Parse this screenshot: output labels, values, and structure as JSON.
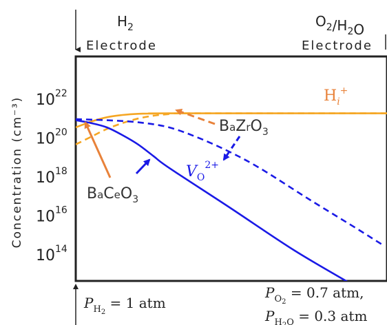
{
  "chart_data": {
    "type": "line",
    "xlabel": "",
    "ylabel": "Concentration (cm⁻³)",
    "y_scale": "log",
    "y_tick_values": [
      100000000000000.0,
      1e+16,
      1e+18,
      1e+20,
      1e+22
    ],
    "y_tick_labels": [
      {
        "base": "10",
        "exp": "14"
      },
      {
        "base": "10",
        "exp": "16"
      },
      {
        "base": "10",
        "exp": "18"
      },
      {
        "base": "10",
        "exp": "20"
      },
      {
        "base": "10",
        "exp": "22"
      }
    ],
    "x_range": [
      0,
      1
    ],
    "grid": false,
    "top_labels": {
      "left": {
        "species": "H₂",
        "word": "Electrode"
      },
      "right": {
        "species": "O₂/H₂O",
        "word": "Electrode"
      }
    },
    "bottom_labels": {
      "left": "P_H2 = 1 atm",
      "right_line1": "P_O2 = 0.7 atm,",
      "right_line2": "P_H2O = 0.3 atm"
    },
    "series": [
      {
        "name": "H_i^+ (BaCeO3)",
        "color": "#f5a623",
        "style": "solid",
        "x": [
          0,
          0.05,
          0.1,
          0.15,
          0.2,
          0.25,
          0.3,
          1.0
        ],
        "y": [
          3e+20,
          6e+20,
          1e+21,
          1.3e+21,
          1.5e+21,
          1.55e+21,
          1.58e+21,
          1.58e+21
        ]
      },
      {
        "name": "H_i^+ (BaZrO3)",
        "color": "#f5a623",
        "style": "dashed",
        "x": [
          0,
          0.05,
          0.1,
          0.15,
          0.2,
          0.25,
          0.3,
          0.35,
          1.0
        ],
        "y": [
          4e+19,
          1e+20,
          2.5e+20,
          5e+20,
          8.5e+20,
          1.2e+21,
          1.45e+21,
          1.58e+21,
          1.58e+21
        ]
      },
      {
        "name": "V_O^2+ (BaCeO3)",
        "color": "#1a1ae6",
        "style": "solid",
        "x": [
          0,
          0.05,
          0.1,
          0.15,
          0.2,
          0.25,
          0.3,
          0.5,
          0.7,
          0.88
        ],
        "y": [
          7e+20,
          5e+20,
          3e+20,
          1.2e+20,
          4e+19,
          1e+19,
          2.5e+18,
          2e+16,
          150000000000000.0,
          3000000000000.0
        ]
      },
      {
        "name": "V_O^2+ (BaZrO3)",
        "color": "#1a1ae6",
        "style": "dashed",
        "x": [
          0,
          0.1,
          0.2,
          0.3,
          0.4,
          0.5,
          0.6,
          0.75,
          0.9,
          0.99
        ],
        "y": [
          8e+20,
          7e+20,
          5.5e+20,
          3e+20,
          8e+19,
          1.5e+19,
          2e+18,
          6e+16,
          2000000000000000.0,
          250000000000000.0
        ]
      }
    ],
    "annotations": [
      {
        "id": "hi",
        "text": "H_i^+",
        "color": "#f5a623"
      },
      {
        "id": "bazro3",
        "text": "BaZrO₃",
        "color": "#f5a623"
      },
      {
        "id": "bace",
        "text": "BaCeO₃",
        "color": "#f5a623"
      },
      {
        "id": "vo",
        "text": "V_O^2+",
        "color": "#1a1ae6"
      }
    ]
  }
}
